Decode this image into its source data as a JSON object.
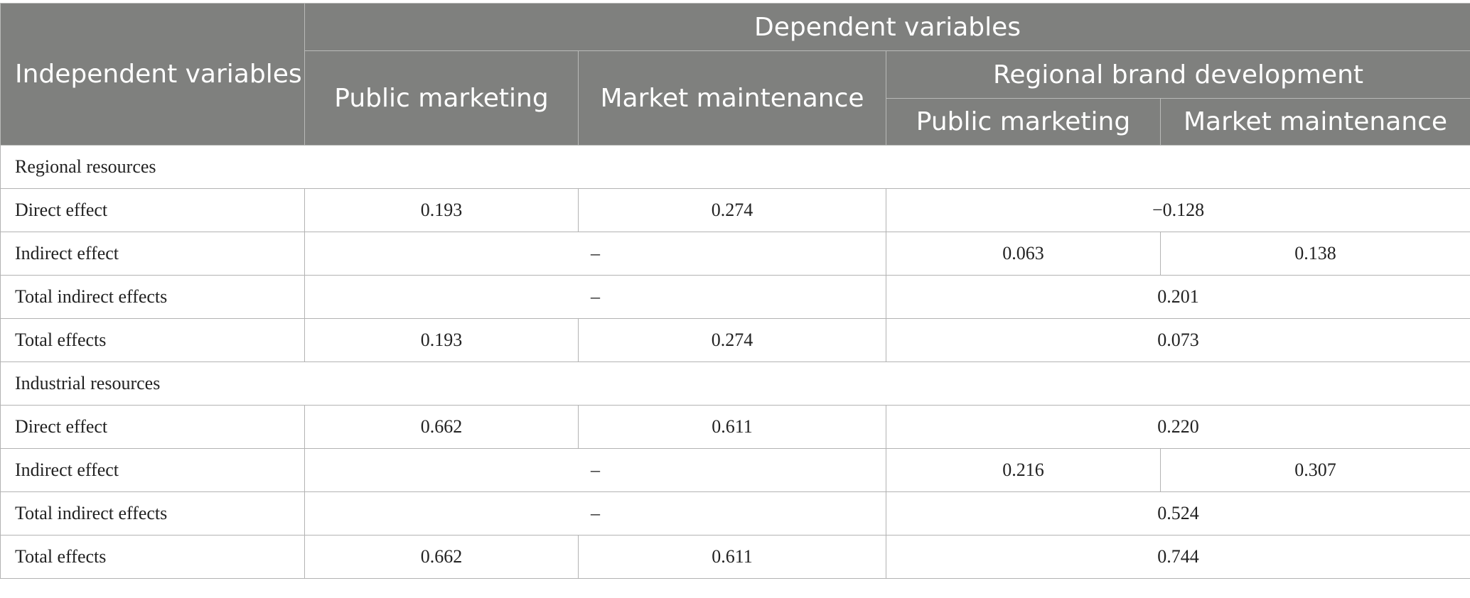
{
  "header": {
    "independent": "Independent variables",
    "dependent": "Dependent variables",
    "public_marketing": "Public marketing",
    "market_maintenance": "Market maintenance",
    "regional_brand_development": "Regional brand development",
    "rbd_public_marketing": "Public marketing",
    "rbd_market_maintenance": "Market maintenance"
  },
  "sections": [
    {
      "title": "Regional resources",
      "rows": [
        {
          "label": "Direct effect",
          "pm": "0.193",
          "mm": "0.274",
          "rbd": "−0.128"
        },
        {
          "label": "Indirect effect",
          "pm_mm": "–",
          "rbd_pm": "0.063",
          "rbd_mm": "0.138"
        },
        {
          "label": "Total indirect effects",
          "pm_mm": "–",
          "rbd": "0.201"
        },
        {
          "label": "Total effects",
          "pm": "0.193",
          "mm": "0.274",
          "rbd": "0.073"
        }
      ]
    },
    {
      "title": "Industrial resources",
      "rows": [
        {
          "label": "Direct effect",
          "pm": "0.662",
          "mm": "0.611",
          "rbd": "0.220"
        },
        {
          "label": "Indirect effect",
          "pm_mm": "–",
          "rbd_pm": "0.216",
          "rbd_mm": "0.307"
        },
        {
          "label": "Total indirect effects",
          "pm_mm": "–",
          "rbd": "0.524"
        },
        {
          "label": "Total effects",
          "pm": "0.662",
          "mm": "0.611",
          "rbd": "0.744"
        }
      ]
    }
  ]
}
